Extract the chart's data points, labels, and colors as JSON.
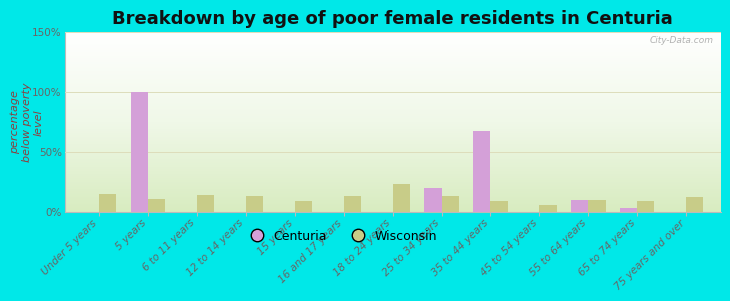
{
  "title": "Breakdown by age of poor female residents in Centuria",
  "ylabel": "percentage\nbelow poverty\nlevel",
  "categories": [
    "Under 5 years",
    "5 years",
    "6 to 11 years",
    "12 to 14 years",
    "15 years",
    "16 and 17 years",
    "18 to 24 years",
    "25 to 34 years",
    "35 to 44 years",
    "45 to 54 years",
    "55 to 64 years",
    "65 to 74 years",
    "75 years and over"
  ],
  "centuria_values": [
    0,
    100,
    0,
    0,
    0,
    0,
    0,
    20,
    67,
    0,
    10,
    3,
    0
  ],
  "wisconsin_values": [
    15,
    11,
    14,
    13,
    9,
    13,
    23,
    13,
    9,
    6,
    10,
    9,
    12
  ],
  "centuria_color": "#d4a0d8",
  "wisconsin_color": "#c8cc88",
  "ylim": [
    0,
    150
  ],
  "yticks": [
    0,
    50,
    100,
    150
  ],
  "ytick_labels": [
    "0%",
    "50%",
    "100%",
    "150%"
  ],
  "outer_background": "#00e8e8",
  "bar_width": 0.35,
  "title_fontsize": 13,
  "axis_label_fontsize": 8,
  "tick_fontsize": 7.5,
  "legend_fontsize": 9,
  "watermark": "City-Data.com"
}
